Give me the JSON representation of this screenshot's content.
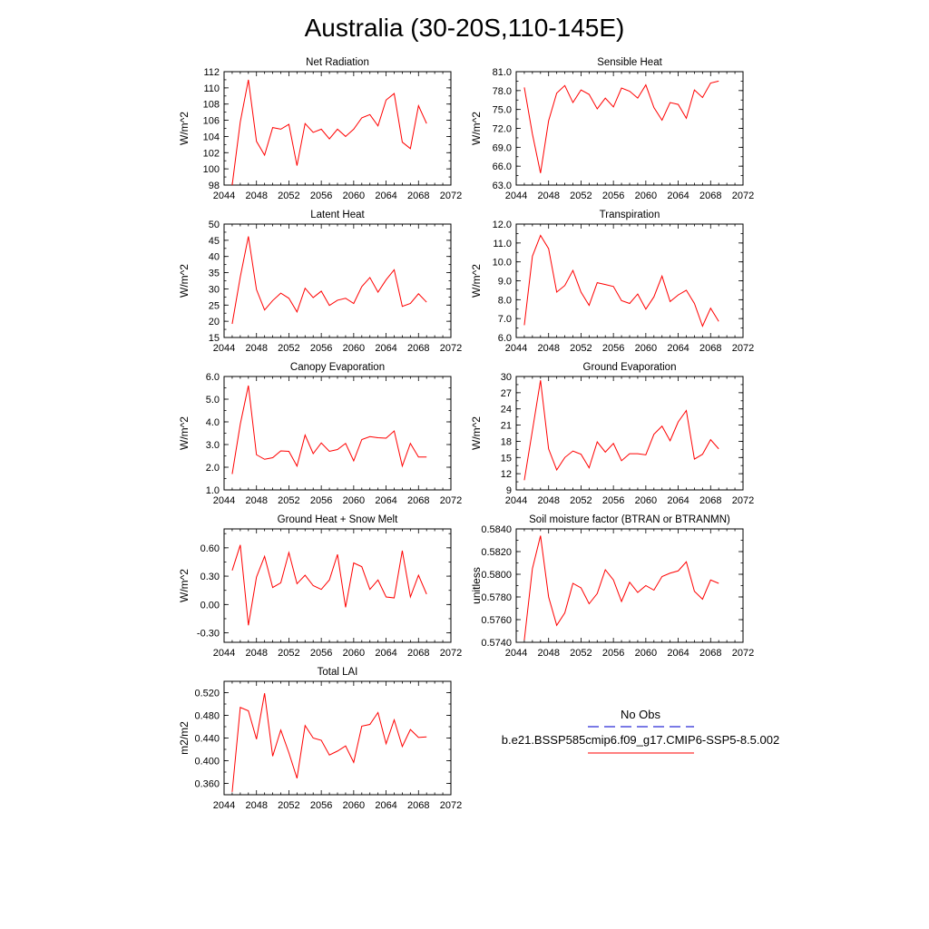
{
  "figure": {
    "title": "Australia (30-20S,110-145E)",
    "legend": {
      "entries": [
        {
          "label": "No Obs",
          "color": "#2b2bd6",
          "style": "dashed"
        },
        {
          "label": "b.e21.BSSP585cmip6.f09_g17.CMIP6-SSP5-8.5.002",
          "color": "#ff0000",
          "style": "solid"
        }
      ]
    }
  },
  "chart_data": [
    {
      "type": "line",
      "title": "Net Radiation",
      "ylabel": "W/m^2",
      "xlim": [
        2044,
        2072
      ],
      "ylim": [
        98,
        112
      ],
      "xticks": [
        "2044",
        "2048",
        "2052",
        "2056",
        "2060",
        "2064",
        "2068",
        "2072"
      ],
      "yticks": [
        "98",
        "100",
        "102",
        "104",
        "106",
        "108",
        "110",
        "112"
      ],
      "x": [
        2045,
        2046,
        2047,
        2048,
        2049,
        2050,
        2051,
        2052,
        2053,
        2054,
        2055,
        2056,
        2057,
        2058,
        2059,
        2060,
        2061,
        2062,
        2063,
        2064,
        2065,
        2066,
        2067,
        2068,
        2069
      ],
      "series": [
        {
          "color": "#ff0000",
          "values": [
            98.0,
            105.8,
            111.0,
            103.4,
            101.7,
            105.1,
            104.9,
            105.5,
            100.4,
            105.6,
            104.5,
            104.9,
            103.7,
            104.9,
            104.0,
            104.9,
            106.3,
            106.7,
            105.3,
            108.5,
            109.3,
            103.3,
            102.5,
            107.8,
            105.6
          ]
        }
      ]
    },
    {
      "type": "line",
      "title": "Sensible Heat",
      "ylabel": "W/m^2",
      "xlim": [
        2044,
        2072
      ],
      "ylim": [
        63,
        81
      ],
      "xticks": [
        "2044",
        "2048",
        "2052",
        "2056",
        "2060",
        "2064",
        "2068",
        "2072"
      ],
      "yticks": [
        "63.0",
        "66.0",
        "69.0",
        "72.0",
        "75.0",
        "78.0",
        "81.0"
      ],
      "x": [
        2045,
        2046,
        2047,
        2048,
        2049,
        2050,
        2051,
        2052,
        2053,
        2054,
        2055,
        2056,
        2057,
        2058,
        2059,
        2060,
        2061,
        2062,
        2063,
        2064,
        2065,
        2066,
        2067,
        2068,
        2069
      ],
      "series": [
        {
          "color": "#ff0000",
          "values": [
            78.5,
            71.1,
            64.9,
            73.2,
            77.6,
            78.8,
            76.1,
            78.1,
            77.4,
            75.1,
            76.8,
            75.4,
            78.4,
            77.9,
            76.8,
            78.9,
            75.3,
            73.3,
            76.1,
            75.8,
            73.6,
            78.1,
            76.9,
            79.2,
            79.5
          ]
        }
      ]
    },
    {
      "type": "line",
      "title": "Latent Heat",
      "ylabel": "W/m^2",
      "xlim": [
        2044,
        2072
      ],
      "ylim": [
        15,
        50
      ],
      "xticks": [
        "2044",
        "2048",
        "2052",
        "2056",
        "2060",
        "2064",
        "2068",
        "2072"
      ],
      "yticks": [
        "15",
        "20",
        "25",
        "30",
        "35",
        "40",
        "45",
        "50"
      ],
      "x": [
        2045,
        2046,
        2047,
        2048,
        2049,
        2050,
        2051,
        2052,
        2053,
        2054,
        2055,
        2056,
        2057,
        2058,
        2059,
        2060,
        2061,
        2062,
        2063,
        2064,
        2065,
        2066,
        2067,
        2068,
        2069
      ],
      "series": [
        {
          "color": "#ff0000",
          "values": [
            19.2,
            33.7,
            46.2,
            29.8,
            23.5,
            26.4,
            28.7,
            27.1,
            22.9,
            30.2,
            27.3,
            29.3,
            24.9,
            26.5,
            27.1,
            25.5,
            30.7,
            33.5,
            29.0,
            32.8,
            35.9,
            24.6,
            25.5,
            28.5,
            25.9
          ]
        }
      ]
    },
    {
      "type": "line",
      "title": "Transpiration",
      "ylabel": "W/m^2",
      "xlim": [
        2044,
        2072
      ],
      "ylim": [
        6,
        12
      ],
      "xticks": [
        "2044",
        "2048",
        "2052",
        "2056",
        "2060",
        "2064",
        "2068",
        "2072"
      ],
      "yticks": [
        "6.0",
        "7.0",
        "8.0",
        "9.0",
        "10.0",
        "11.0",
        "12.0"
      ],
      "x": [
        2045,
        2046,
        2047,
        2048,
        2049,
        2050,
        2051,
        2052,
        2053,
        2054,
        2055,
        2056,
        2057,
        2058,
        2059,
        2060,
        2061,
        2062,
        2063,
        2064,
        2065,
        2066,
        2067,
        2068,
        2069
      ],
      "series": [
        {
          "color": "#ff0000",
          "values": [
            6.65,
            10.3,
            11.4,
            10.7,
            8.4,
            8.75,
            9.55,
            8.4,
            7.7,
            8.9,
            8.8,
            8.7,
            7.95,
            7.8,
            8.3,
            7.5,
            8.15,
            9.25,
            7.9,
            8.25,
            8.5,
            7.8,
            6.6,
            7.55,
            6.85
          ]
        }
      ]
    },
    {
      "type": "line",
      "title": "Canopy Evaporation",
      "ylabel": "W/m^2",
      "xlim": [
        2044,
        2072
      ],
      "ylim": [
        1,
        6
      ],
      "xticks": [
        "2044",
        "2048",
        "2052",
        "2056",
        "2060",
        "2064",
        "2068",
        "2072"
      ],
      "yticks": [
        "1.0",
        "2.0",
        "3.0",
        "4.0",
        "5.0",
        "6.0"
      ],
      "x": [
        2045,
        2046,
        2047,
        2048,
        2049,
        2050,
        2051,
        2052,
        2053,
        2054,
        2055,
        2056,
        2057,
        2058,
        2059,
        2060,
        2061,
        2062,
        2063,
        2064,
        2065,
        2066,
        2067,
        2068,
        2069
      ],
      "series": [
        {
          "color": "#ff0000",
          "values": [
            1.7,
            3.9,
            5.6,
            2.55,
            2.35,
            2.42,
            2.72,
            2.7,
            2.05,
            3.42,
            2.6,
            3.07,
            2.7,
            2.78,
            3.05,
            2.28,
            3.22,
            3.35,
            3.3,
            3.28,
            3.6,
            2.05,
            3.05,
            2.45,
            2.45
          ]
        }
      ]
    },
    {
      "type": "line",
      "title": "Ground Evaporation",
      "ylabel": "W/m^2",
      "xlim": [
        2044,
        2072
      ],
      "ylim": [
        9,
        30
      ],
      "xticks": [
        "2044",
        "2048",
        "2052",
        "2056",
        "2060",
        "2064",
        "2068",
        "2072"
      ],
      "yticks": [
        "9",
        "12",
        "15",
        "18",
        "21",
        "24",
        "27",
        "30"
      ],
      "x": [
        2045,
        2046,
        2047,
        2048,
        2049,
        2050,
        2051,
        2052,
        2053,
        2054,
        2055,
        2056,
        2057,
        2058,
        2059,
        2060,
        2061,
        2062,
        2063,
        2064,
        2065,
        2066,
        2067,
        2068,
        2069
      ],
      "series": [
        {
          "color": "#ff0000",
          "values": [
            10.8,
            20.0,
            29.3,
            16.6,
            12.7,
            15.0,
            16.2,
            15.6,
            13.1,
            17.9,
            16.0,
            17.6,
            14.4,
            15.7,
            15.7,
            15.5,
            19.3,
            20.8,
            18.1,
            21.6,
            23.7,
            14.7,
            15.6,
            18.3,
            16.6
          ]
        }
      ]
    },
    {
      "type": "line",
      "title": "Ground Heat + Snow Melt",
      "ylabel": "W/m^2",
      "xlim": [
        2044,
        2072
      ],
      "ylim": [
        -0.4,
        0.8
      ],
      "xticks": [
        "2044",
        "2048",
        "2052",
        "2056",
        "2060",
        "2064",
        "2068",
        "2072"
      ],
      "yticks": [
        "-0.30",
        "0.00",
        "0.30",
        "0.60"
      ],
      "ytick_values": [
        -0.3,
        0.0,
        0.3,
        0.6
      ],
      "x": [
        2045,
        2046,
        2047,
        2048,
        2049,
        2050,
        2051,
        2052,
        2053,
        2054,
        2055,
        2056,
        2057,
        2058,
        2059,
        2060,
        2061,
        2062,
        2063,
        2064,
        2065,
        2066,
        2067,
        2068,
        2069
      ],
      "series": [
        {
          "color": "#ff0000",
          "values": [
            0.36,
            0.63,
            -0.22,
            0.29,
            0.51,
            0.18,
            0.23,
            0.55,
            0.22,
            0.31,
            0.2,
            0.16,
            0.26,
            0.53,
            -0.03,
            0.44,
            0.4,
            0.16,
            0.26,
            0.08,
            0.07,
            0.57,
            0.08,
            0.31,
            0.11
          ]
        }
      ]
    },
    {
      "type": "line",
      "title": "Soil moisture factor (BTRAN or BTRANMN)",
      "ylabel": "unitless",
      "xlim": [
        2044,
        2072
      ],
      "ylim": [
        0.574,
        0.584
      ],
      "xticks": [
        "2044",
        "2048",
        "2052",
        "2056",
        "2060",
        "2064",
        "2068",
        "2072"
      ],
      "yticks": [
        "0.5740",
        "0.5760",
        "0.5780",
        "0.5800",
        "0.5820",
        "0.5840"
      ],
      "x": [
        2045,
        2046,
        2047,
        2048,
        2049,
        2050,
        2051,
        2052,
        2053,
        2054,
        2055,
        2056,
        2057,
        2058,
        2059,
        2060,
        2061,
        2062,
        2063,
        2064,
        2065,
        2066,
        2067,
        2068,
        2069
      ],
      "series": [
        {
          "color": "#ff0000",
          "values": [
            0.5742,
            0.5805,
            0.5834,
            0.578,
            0.5755,
            0.5766,
            0.5792,
            0.5788,
            0.5774,
            0.5783,
            0.5804,
            0.5795,
            0.5776,
            0.5793,
            0.5784,
            0.579,
            0.5786,
            0.5798,
            0.5801,
            0.5803,
            0.5811,
            0.5785,
            0.5778,
            0.5795,
            0.5792
          ]
        }
      ]
    },
    {
      "type": "line",
      "title": "Total LAI",
      "ylabel": "m2/m2",
      "xlim": [
        2044,
        2072
      ],
      "ylim": [
        0.34,
        0.54
      ],
      "xticks": [
        "2044",
        "2048",
        "2052",
        "2056",
        "2060",
        "2064",
        "2068",
        "2072"
      ],
      "yticks": [
        "0.360",
        "0.400",
        "0.440",
        "0.480",
        "0.520"
      ],
      "ytick_values": [
        0.36,
        0.4,
        0.44,
        0.48,
        0.52
      ],
      "x": [
        2045,
        2046,
        2047,
        2048,
        2049,
        2050,
        2051,
        2052,
        2053,
        2054,
        2055,
        2056,
        2057,
        2058,
        2059,
        2060,
        2061,
        2062,
        2063,
        2064,
        2065,
        2066,
        2067,
        2068,
        2069
      ],
      "series": [
        {
          "color": "#ff0000",
          "values": [
            0.345,
            0.494,
            0.488,
            0.438,
            0.519,
            0.408,
            0.454,
            0.414,
            0.369,
            0.462,
            0.44,
            0.436,
            0.41,
            0.417,
            0.426,
            0.397,
            0.461,
            0.464,
            0.485,
            0.43,
            0.472,
            0.425,
            0.455,
            0.441,
            0.442
          ]
        }
      ]
    }
  ]
}
